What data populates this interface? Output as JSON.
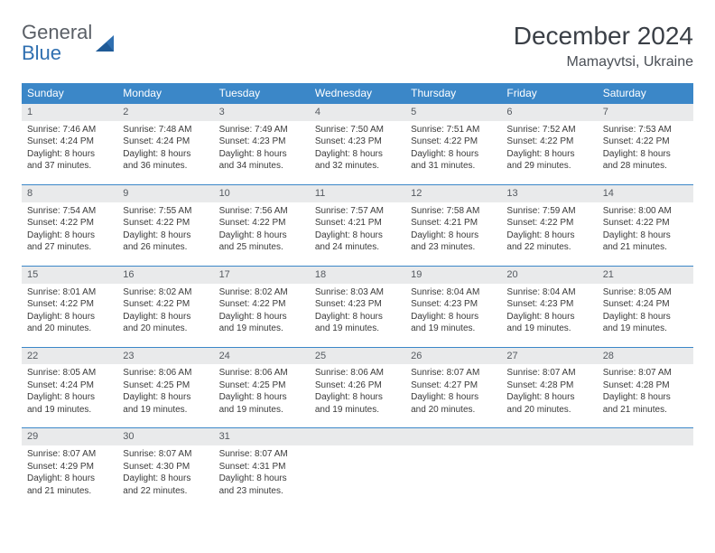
{
  "brand": {
    "word1": "General",
    "word2": "Blue"
  },
  "title": {
    "month": "December 2024",
    "location": "Mamayvtsi, Ukraine"
  },
  "colors": {
    "header_bg": "#3b87c8",
    "header_text": "#ffffff",
    "daynum_bg": "#e9eaeb",
    "row_border": "#3b87c8",
    "brand_gray": "#5a5f66",
    "brand_blue": "#2f6fb0"
  },
  "weekdays": [
    "Sunday",
    "Monday",
    "Tuesday",
    "Wednesday",
    "Thursday",
    "Friday",
    "Saturday"
  ],
  "weeks": [
    [
      {
        "n": "1",
        "sr": "Sunrise: 7:46 AM",
        "ss": "Sunset: 4:24 PM",
        "d1": "Daylight: 8 hours",
        "d2": "and 37 minutes."
      },
      {
        "n": "2",
        "sr": "Sunrise: 7:48 AM",
        "ss": "Sunset: 4:24 PM",
        "d1": "Daylight: 8 hours",
        "d2": "and 36 minutes."
      },
      {
        "n": "3",
        "sr": "Sunrise: 7:49 AM",
        "ss": "Sunset: 4:23 PM",
        "d1": "Daylight: 8 hours",
        "d2": "and 34 minutes."
      },
      {
        "n": "4",
        "sr": "Sunrise: 7:50 AM",
        "ss": "Sunset: 4:23 PM",
        "d1": "Daylight: 8 hours",
        "d2": "and 32 minutes."
      },
      {
        "n": "5",
        "sr": "Sunrise: 7:51 AM",
        "ss": "Sunset: 4:22 PM",
        "d1": "Daylight: 8 hours",
        "d2": "and 31 minutes."
      },
      {
        "n": "6",
        "sr": "Sunrise: 7:52 AM",
        "ss": "Sunset: 4:22 PM",
        "d1": "Daylight: 8 hours",
        "d2": "and 29 minutes."
      },
      {
        "n": "7",
        "sr": "Sunrise: 7:53 AM",
        "ss": "Sunset: 4:22 PM",
        "d1": "Daylight: 8 hours",
        "d2": "and 28 minutes."
      }
    ],
    [
      {
        "n": "8",
        "sr": "Sunrise: 7:54 AM",
        "ss": "Sunset: 4:22 PM",
        "d1": "Daylight: 8 hours",
        "d2": "and 27 minutes."
      },
      {
        "n": "9",
        "sr": "Sunrise: 7:55 AM",
        "ss": "Sunset: 4:22 PM",
        "d1": "Daylight: 8 hours",
        "d2": "and 26 minutes."
      },
      {
        "n": "10",
        "sr": "Sunrise: 7:56 AM",
        "ss": "Sunset: 4:22 PM",
        "d1": "Daylight: 8 hours",
        "d2": "and 25 minutes."
      },
      {
        "n": "11",
        "sr": "Sunrise: 7:57 AM",
        "ss": "Sunset: 4:21 PM",
        "d1": "Daylight: 8 hours",
        "d2": "and 24 minutes."
      },
      {
        "n": "12",
        "sr": "Sunrise: 7:58 AM",
        "ss": "Sunset: 4:21 PM",
        "d1": "Daylight: 8 hours",
        "d2": "and 23 minutes."
      },
      {
        "n": "13",
        "sr": "Sunrise: 7:59 AM",
        "ss": "Sunset: 4:22 PM",
        "d1": "Daylight: 8 hours",
        "d2": "and 22 minutes."
      },
      {
        "n": "14",
        "sr": "Sunrise: 8:00 AM",
        "ss": "Sunset: 4:22 PM",
        "d1": "Daylight: 8 hours",
        "d2": "and 21 minutes."
      }
    ],
    [
      {
        "n": "15",
        "sr": "Sunrise: 8:01 AM",
        "ss": "Sunset: 4:22 PM",
        "d1": "Daylight: 8 hours",
        "d2": "and 20 minutes."
      },
      {
        "n": "16",
        "sr": "Sunrise: 8:02 AM",
        "ss": "Sunset: 4:22 PM",
        "d1": "Daylight: 8 hours",
        "d2": "and 20 minutes."
      },
      {
        "n": "17",
        "sr": "Sunrise: 8:02 AM",
        "ss": "Sunset: 4:22 PM",
        "d1": "Daylight: 8 hours",
        "d2": "and 19 minutes."
      },
      {
        "n": "18",
        "sr": "Sunrise: 8:03 AM",
        "ss": "Sunset: 4:23 PM",
        "d1": "Daylight: 8 hours",
        "d2": "and 19 minutes."
      },
      {
        "n": "19",
        "sr": "Sunrise: 8:04 AM",
        "ss": "Sunset: 4:23 PM",
        "d1": "Daylight: 8 hours",
        "d2": "and 19 minutes."
      },
      {
        "n": "20",
        "sr": "Sunrise: 8:04 AM",
        "ss": "Sunset: 4:23 PM",
        "d1": "Daylight: 8 hours",
        "d2": "and 19 minutes."
      },
      {
        "n": "21",
        "sr": "Sunrise: 8:05 AM",
        "ss": "Sunset: 4:24 PM",
        "d1": "Daylight: 8 hours",
        "d2": "and 19 minutes."
      }
    ],
    [
      {
        "n": "22",
        "sr": "Sunrise: 8:05 AM",
        "ss": "Sunset: 4:24 PM",
        "d1": "Daylight: 8 hours",
        "d2": "and 19 minutes."
      },
      {
        "n": "23",
        "sr": "Sunrise: 8:06 AM",
        "ss": "Sunset: 4:25 PM",
        "d1": "Daylight: 8 hours",
        "d2": "and 19 minutes."
      },
      {
        "n": "24",
        "sr": "Sunrise: 8:06 AM",
        "ss": "Sunset: 4:25 PM",
        "d1": "Daylight: 8 hours",
        "d2": "and 19 minutes."
      },
      {
        "n": "25",
        "sr": "Sunrise: 8:06 AM",
        "ss": "Sunset: 4:26 PM",
        "d1": "Daylight: 8 hours",
        "d2": "and 19 minutes."
      },
      {
        "n": "26",
        "sr": "Sunrise: 8:07 AM",
        "ss": "Sunset: 4:27 PM",
        "d1": "Daylight: 8 hours",
        "d2": "and 20 minutes."
      },
      {
        "n": "27",
        "sr": "Sunrise: 8:07 AM",
        "ss": "Sunset: 4:28 PM",
        "d1": "Daylight: 8 hours",
        "d2": "and 20 minutes."
      },
      {
        "n": "28",
        "sr": "Sunrise: 8:07 AM",
        "ss": "Sunset: 4:28 PM",
        "d1": "Daylight: 8 hours",
        "d2": "and 21 minutes."
      }
    ],
    [
      {
        "n": "29",
        "sr": "Sunrise: 8:07 AM",
        "ss": "Sunset: 4:29 PM",
        "d1": "Daylight: 8 hours",
        "d2": "and 21 minutes."
      },
      {
        "n": "30",
        "sr": "Sunrise: 8:07 AM",
        "ss": "Sunset: 4:30 PM",
        "d1": "Daylight: 8 hours",
        "d2": "and 22 minutes."
      },
      {
        "n": "31",
        "sr": "Sunrise: 8:07 AM",
        "ss": "Sunset: 4:31 PM",
        "d1": "Daylight: 8 hours",
        "d2": "and 23 minutes."
      },
      {
        "empty": true
      },
      {
        "empty": true
      },
      {
        "empty": true
      },
      {
        "empty": true
      }
    ]
  ]
}
